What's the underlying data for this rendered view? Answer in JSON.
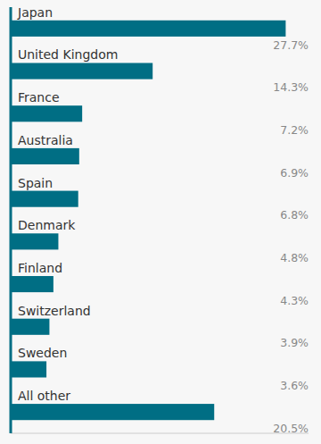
{
  "chart_data": {
    "type": "bar",
    "orientation": "horizontal",
    "categories": [
      "Japan",
      "United Kingdom",
      "France",
      "Australia",
      "Spain",
      "Denmark",
      "Finland",
      "Switzerland",
      "Sweden",
      "All other"
    ],
    "values": [
      27.7,
      14.3,
      7.2,
      6.9,
      6.8,
      4.8,
      4.3,
      3.9,
      3.6,
      20.5
    ],
    "value_labels": [
      "27.7%",
      "14.3%",
      "7.2%",
      "6.9%",
      "6.8%",
      "4.8%",
      "4.3%",
      "3.9%",
      "3.6%",
      "20.5%"
    ],
    "color": "#006e84",
    "xlim": [
      0,
      30.0
    ],
    "data_labels": true,
    "tick_labels": false,
    "grid": false
  }
}
